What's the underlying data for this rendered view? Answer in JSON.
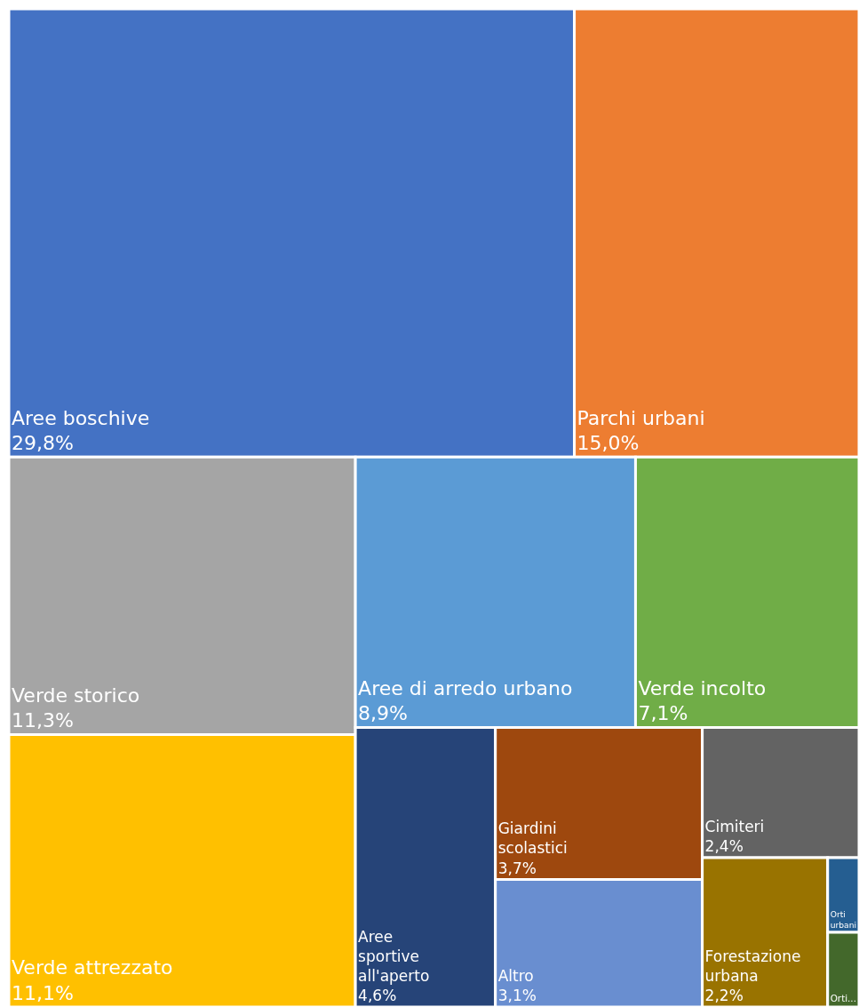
{
  "chart_data": {
    "type": "other",
    "categories": [
      "Aree boschive",
      "Parchi urbani",
      "Verde storico",
      "Verde attrezzato",
      "Aree di arredo urbano",
      "Verde incolto",
      "Aree sportive all'aperto",
      "Giardini scolastici",
      "Altro",
      "Cimiteri",
      "Forestazione urbana",
      "Orti urbani",
      "Orti..."
    ],
    "values": [
      29.8,
      15.0,
      11.3,
      11.1,
      8.9,
      7.1,
      4.6,
      3.7,
      3.1,
      2.4,
      2.2,
      null,
      null
    ],
    "value_labels": [
      "29,8%",
      "15,0%",
      "11,3%",
      "11,1%",
      "8,9%",
      "7,1%",
      "4,6%",
      "3,7%",
      "3,1%",
      "2,4%",
      "2,2%",
      null,
      null
    ],
    "colors": [
      "#4472c4",
      "#ed7d31",
      "#a5a5a5",
      "#ffc000",
      "#5b9bd5",
      "#70ad47",
      "#264478",
      "#9e480e",
      "#698ed0",
      "#636363",
      "#997300",
      "#255e91",
      "#43682b"
    ]
  }
}
